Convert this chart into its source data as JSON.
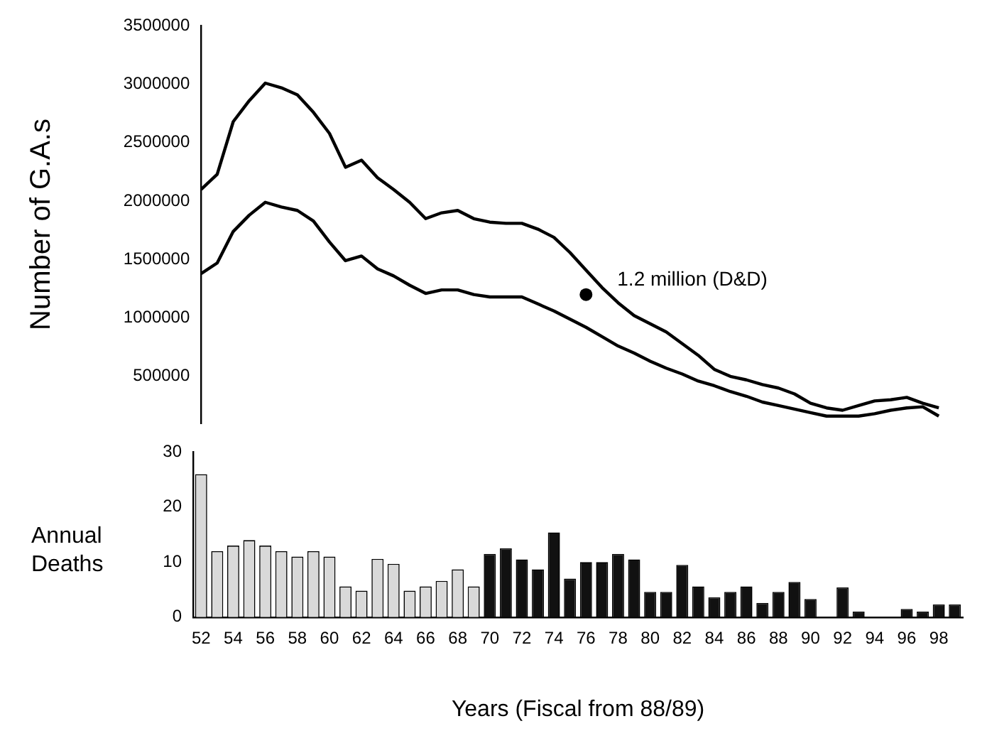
{
  "chart_data": [
    {
      "type": "line",
      "ylabel": "Number of G.A.s",
      "ylim": [
        100000,
        3500000
      ],
      "yticks": [
        500000,
        1000000,
        1500000,
        2000000,
        2500000,
        3000000,
        3500000
      ],
      "tick_labels": "y",
      "grid": false,
      "legend": false,
      "marker": "none",
      "categories": [
        null,
        null,
        null,
        null,
        null,
        null,
        null,
        null,
        null,
        null,
        null,
        null,
        null,
        null,
        null,
        null,
        null,
        null,
        null,
        null,
        null,
        null,
        null,
        null,
        null,
        null,
        null,
        null,
        null,
        null,
        null,
        null,
        null,
        null,
        null,
        null,
        null,
        null,
        null,
        null,
        null,
        null,
        null,
        null,
        null,
        null,
        null,
        null
      ],
      "series": [
        {
          "color": "#000000",
          "values": [
            2100000,
            2230000,
            2680000,
            2860000,
            3010000,
            2970000,
            2910000,
            2760000,
            2580000,
            2290000,
            2350000,
            2200000,
            2100000,
            1990000,
            1850000,
            1900000,
            1920000,
            1850000,
            1820000,
            1810000,
            1810000,
            1760000,
            1690000,
            1560000,
            1410000,
            1260000,
            1130000,
            1020000,
            950000,
            880000,
            780000,
            680000,
            560000,
            500000,
            470000,
            430000,
            400000,
            350000,
            270000,
            230000,
            210000,
            250000,
            290000,
            300000,
            320000,
            270000,
            230000,
            null
          ]
        },
        {
          "color": "#000000",
          "values": [
            1380000,
            1470000,
            1740000,
            1880000,
            1990000,
            1950000,
            1920000,
            1830000,
            1650000,
            1490000,
            1530000,
            1420000,
            1360000,
            1280000,
            1210000,
            1240000,
            1240000,
            1200000,
            1180000,
            1180000,
            1180000,
            1120000,
            1060000,
            990000,
            920000,
            840000,
            760000,
            700000,
            630000,
            570000,
            520000,
            460000,
            420000,
            370000,
            330000,
            280000,
            250000,
            220000,
            190000,
            160000,
            160000,
            160000,
            180000,
            210000,
            230000,
            240000,
            160000,
            null
          ]
        },
        {
          "type": "scatter",
          "marker": "circle",
          "color": "#000000",
          "values": [
            null,
            null,
            null,
            null,
            null,
            null,
            null,
            null,
            null,
            null,
            null,
            null,
            null,
            null,
            null,
            null,
            null,
            null,
            null,
            null,
            null,
            null,
            null,
            null,
            1200000,
            null,
            null,
            null,
            null,
            null,
            null,
            null,
            null,
            null,
            null,
            null,
            null,
            null,
            null,
            null,
            null,
            null,
            null,
            null,
            null,
            null,
            null,
            null
          ]
        }
      ],
      "annotations": [
        "1.2 million (D&D)"
      ]
    },
    {
      "type": "bar",
      "ylabel": "Annual Deaths",
      "xlabel": "Years (Fiscal from 88/89)",
      "ylim": [
        0,
        30
      ],
      "yticks": [
        0,
        10,
        20,
        30
      ],
      "grid": false,
      "legend": false,
      "categories": [
        "52",
        null,
        "54",
        null,
        "56",
        null,
        "58",
        null,
        "60",
        null,
        "62",
        null,
        "64",
        null,
        "66",
        null,
        "68",
        null,
        "70",
        null,
        "72",
        null,
        "74",
        null,
        "76",
        null,
        "78",
        null,
        "80",
        null,
        "82",
        null,
        "84",
        null,
        "86",
        null,
        "88",
        null,
        "90",
        null,
        "92",
        null,
        "94",
        null,
        "96",
        null,
        "98",
        null
      ],
      "values": [
        26,
        12,
        13,
        14,
        13,
        12,
        11,
        12,
        11,
        5.6,
        4.8,
        10.6,
        9.7,
        4.8,
        5.6,
        6.6,
        8.7,
        5.6,
        11.5,
        12.5,
        10.5,
        8.7,
        15.4,
        7,
        10,
        10,
        11.5,
        10.5,
        4.6,
        4.6,
        9.5,
        5.6,
        3.6,
        4.6,
        5.6,
        2.6,
        4.6,
        6.4,
        3.3,
        0,
        5.4,
        1,
        0,
        0,
        1.5,
        1,
        2.3,
        2.3
      ],
      "colors": [
        "#d9d9d9",
        "#d9d9d9",
        "#d9d9d9",
        "#d9d9d9",
        "#d9d9d9",
        "#d9d9d9",
        "#d9d9d9",
        "#d9d9d9",
        "#d9d9d9",
        "#d9d9d9",
        "#d9d9d9",
        "#d9d9d9",
        "#d9d9d9",
        "#d9d9d9",
        "#d9d9d9",
        "#d9d9d9",
        "#d9d9d9",
        "#d9d9d9",
        "#111111",
        "#111111",
        "#111111",
        "#111111",
        "#111111",
        "#111111",
        "#111111",
        "#111111",
        "#111111",
        "#111111",
        "#111111",
        "#111111",
        "#111111",
        "#111111",
        "#111111",
        "#111111",
        "#111111",
        "#111111",
        "#111111",
        "#111111",
        "#111111",
        "#111111",
        "#111111",
        "#111111",
        "#111111",
        "#111111",
        "#111111",
        "#111111",
        "#111111",
        "#111111"
      ]
    }
  ]
}
